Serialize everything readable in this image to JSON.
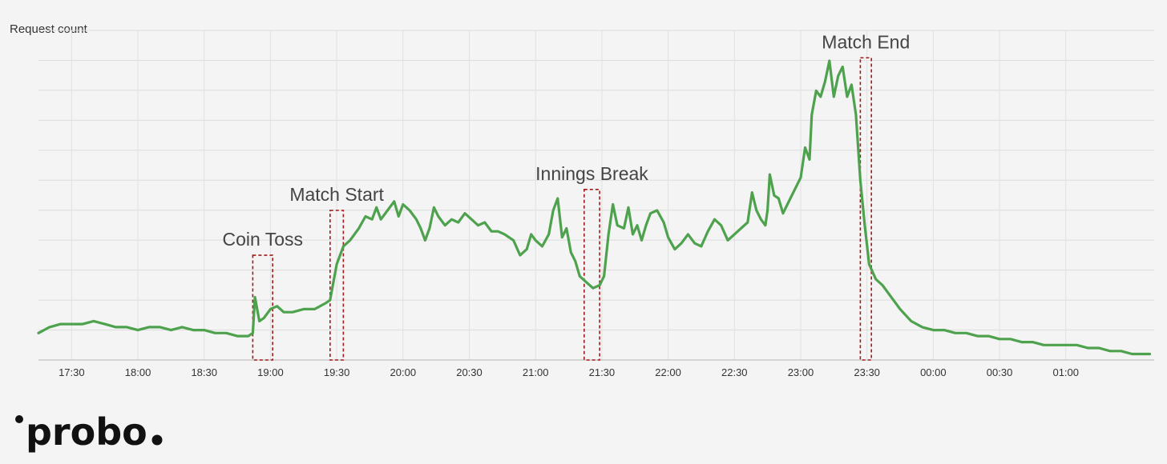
{
  "chart_data": {
    "type": "line",
    "ylabel": "Request count",
    "xlabel": "",
    "title": "",
    "grid": true,
    "y_tick_labels_shown": false,
    "x_tick_labels": [
      "17:30",
      "18:00",
      "18:30",
      "19:00",
      "19:30",
      "20:00",
      "20:30",
      "21:00",
      "21:30",
      "22:00",
      "22:30",
      "23:00",
      "23:30",
      "00:00",
      "00:30",
      "01:00"
    ],
    "xlim": [
      "17:15",
      "01:40"
    ],
    "ylim": [
      0,
      100
    ],
    "line_color": "#4ea24e",
    "annotation_color": "#a11a1a",
    "annotations": [
      {
        "label": "Coin Toss",
        "x_start": "18:52",
        "x_end": "19:01",
        "y_top": 35
      },
      {
        "label": "Match Start",
        "x_start": "19:27",
        "x_end": "19:33",
        "y_top": 50
      },
      {
        "label": "Innings Break",
        "x_start": "21:22",
        "x_end": "21:29",
        "y_top": 57
      },
      {
        "label": "Match End",
        "x_start": "23:27",
        "x_end": "23:32",
        "y_top": 101
      }
    ],
    "series": [
      {
        "points": [
          [
            "17:15",
            9
          ],
          [
            "17:20",
            11
          ],
          [
            "17:25",
            12
          ],
          [
            "17:30",
            12
          ],
          [
            "17:35",
            12
          ],
          [
            "17:40",
            13
          ],
          [
            "17:45",
            12
          ],
          [
            "17:50",
            11
          ],
          [
            "17:55",
            11
          ],
          [
            "18:00",
            10
          ],
          [
            "18:05",
            11
          ],
          [
            "18:10",
            11
          ],
          [
            "18:15",
            10
          ],
          [
            "18:20",
            11
          ],
          [
            "18:25",
            10
          ],
          [
            "18:30",
            10
          ],
          [
            "18:35",
            9
          ],
          [
            "18:40",
            9
          ],
          [
            "18:45",
            8
          ],
          [
            "18:50",
            8
          ],
          [
            "18:52",
            9
          ],
          [
            "18:53",
            21
          ],
          [
            "18:55",
            13
          ],
          [
            "18:57",
            14
          ],
          [
            "19:00",
            17
          ],
          [
            "19:03",
            18
          ],
          [
            "19:06",
            16
          ],
          [
            "19:10",
            16
          ],
          [
            "19:15",
            17
          ],
          [
            "19:20",
            17
          ],
          [
            "19:25",
            19
          ],
          [
            "19:27",
            20
          ],
          [
            "19:30",
            32
          ],
          [
            "19:33",
            38
          ],
          [
            "19:36",
            40
          ],
          [
            "19:40",
            44
          ],
          [
            "19:43",
            48
          ],
          [
            "19:46",
            47
          ],
          [
            "19:48",
            51
          ],
          [
            "19:50",
            47
          ],
          [
            "19:53",
            50
          ],
          [
            "19:56",
            53
          ],
          [
            "19:58",
            48
          ],
          [
            "20:00",
            52
          ],
          [
            "20:03",
            50
          ],
          [
            "20:06",
            47
          ],
          [
            "20:08",
            44
          ],
          [
            "20:10",
            40
          ],
          [
            "20:12",
            44
          ],
          [
            "20:14",
            51
          ],
          [
            "20:16",
            48
          ],
          [
            "20:19",
            45
          ],
          [
            "20:22",
            47
          ],
          [
            "20:25",
            46
          ],
          [
            "20:28",
            49
          ],
          [
            "20:31",
            47
          ],
          [
            "20:34",
            45
          ],
          [
            "20:37",
            46
          ],
          [
            "20:40",
            43
          ],
          [
            "20:43",
            43
          ],
          [
            "20:46",
            42
          ],
          [
            "20:50",
            40
          ],
          [
            "20:53",
            35
          ],
          [
            "20:56",
            37
          ],
          [
            "20:58",
            42
          ],
          [
            "21:00",
            40
          ],
          [
            "21:03",
            38
          ],
          [
            "21:06",
            42
          ],
          [
            "21:08",
            50
          ],
          [
            "21:10",
            54
          ],
          [
            "21:12",
            41
          ],
          [
            "21:14",
            44
          ],
          [
            "21:16",
            36
          ],
          [
            "21:18",
            33
          ],
          [
            "21:20",
            28
          ],
          [
            "21:23",
            26
          ],
          [
            "21:26",
            24
          ],
          [
            "21:29",
            25
          ],
          [
            "21:31",
            28
          ],
          [
            "21:33",
            42
          ],
          [
            "21:35",
            52
          ],
          [
            "21:37",
            45
          ],
          [
            "21:40",
            44
          ],
          [
            "21:42",
            51
          ],
          [
            "21:44",
            42
          ],
          [
            "21:46",
            45
          ],
          [
            "21:48",
            40
          ],
          [
            "21:50",
            45
          ],
          [
            "21:52",
            49
          ],
          [
            "21:55",
            50
          ],
          [
            "21:58",
            46
          ],
          [
            "22:00",
            41
          ],
          [
            "22:03",
            37
          ],
          [
            "22:06",
            39
          ],
          [
            "22:09",
            42
          ],
          [
            "22:12",
            39
          ],
          [
            "22:15",
            38
          ],
          [
            "22:18",
            43
          ],
          [
            "22:21",
            47
          ],
          [
            "22:24",
            45
          ],
          [
            "22:27",
            40
          ],
          [
            "22:30",
            42
          ],
          [
            "22:33",
            44
          ],
          [
            "22:36",
            46
          ],
          [
            "22:38",
            56
          ],
          [
            "22:40",
            50
          ],
          [
            "22:42",
            47
          ],
          [
            "22:44",
            45
          ],
          [
            "22:45",
            50
          ],
          [
            "22:46",
            62
          ],
          [
            "22:48",
            55
          ],
          [
            "22:50",
            54
          ],
          [
            "22:52",
            49
          ],
          [
            "22:54",
            52
          ],
          [
            "22:56",
            55
          ],
          [
            "23:00",
            61
          ],
          [
            "23:02",
            71
          ],
          [
            "23:04",
            67
          ],
          [
            "23:05",
            82
          ],
          [
            "23:07",
            90
          ],
          [
            "23:09",
            88
          ],
          [
            "23:11",
            93
          ],
          [
            "23:13",
            100
          ],
          [
            "23:15",
            88
          ],
          [
            "23:17",
            95
          ],
          [
            "23:19",
            98
          ],
          [
            "23:21",
            88
          ],
          [
            "23:23",
            92
          ],
          [
            "23:25",
            82
          ],
          [
            "23:27",
            60
          ],
          [
            "23:29",
            45
          ],
          [
            "23:31",
            32
          ],
          [
            "23:34",
            27
          ],
          [
            "23:37",
            25
          ],
          [
            "23:40",
            22
          ],
          [
            "23:45",
            17
          ],
          [
            "23:50",
            13
          ],
          [
            "23:55",
            11
          ],
          [
            "00:00",
            10
          ],
          [
            "00:05",
            10
          ],
          [
            "00:10",
            9
          ],
          [
            "00:15",
            9
          ],
          [
            "00:20",
            8
          ],
          [
            "00:25",
            8
          ],
          [
            "00:30",
            7
          ],
          [
            "00:35",
            7
          ],
          [
            "00:40",
            6
          ],
          [
            "00:45",
            6
          ],
          [
            "00:50",
            5
          ],
          [
            "00:55",
            5
          ],
          [
            "01:00",
            5
          ],
          [
            "01:05",
            5
          ],
          [
            "01:10",
            4
          ],
          [
            "01:15",
            4
          ],
          [
            "01:20",
            3
          ],
          [
            "01:25",
            3
          ],
          [
            "01:30",
            2
          ],
          [
            "01:35",
            2
          ],
          [
            "01:38",
            2
          ]
        ]
      }
    ]
  },
  "logo": {
    "text": "probo"
  }
}
